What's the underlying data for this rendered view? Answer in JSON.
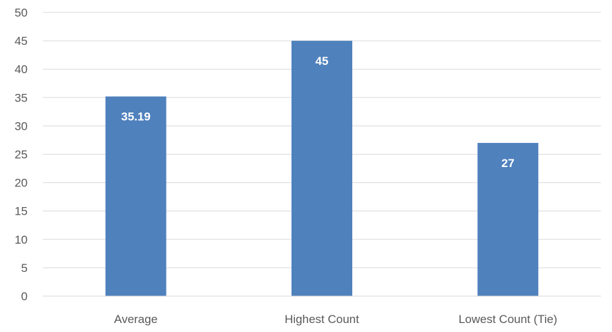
{
  "chart_data": {
    "type": "bar",
    "categories": [
      "Average",
      "Highest Count",
      "Lowest Count (Tie)"
    ],
    "values": [
      35.19,
      45,
      27
    ],
    "data_labels": [
      "35.19",
      "45",
      "27"
    ],
    "yticks": [
      0,
      5,
      10,
      15,
      20,
      25,
      30,
      35,
      40,
      45,
      50
    ],
    "ylim": [
      0,
      50
    ],
    "grid": true,
    "legend": "none",
    "bar_color": "#4f81bd",
    "label_color": "#ffffff"
  }
}
